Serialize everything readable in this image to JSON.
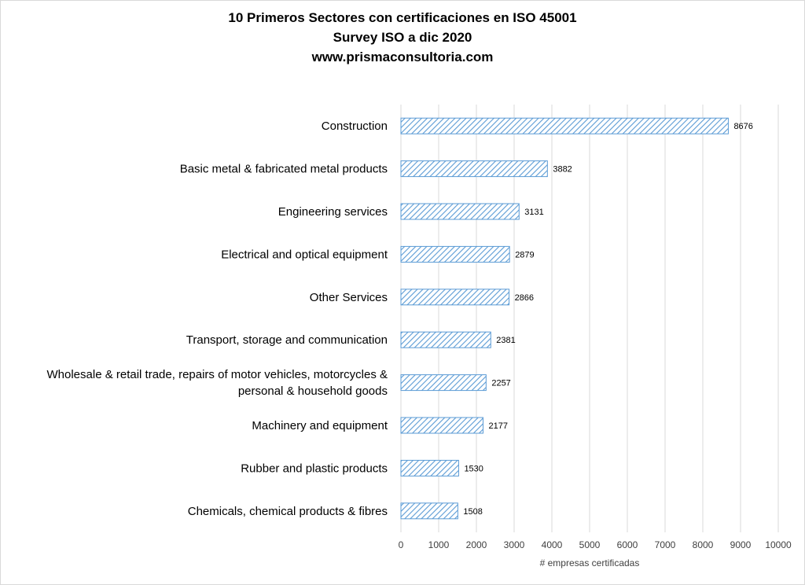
{
  "chart_data": {
    "type": "bar",
    "orientation": "horizontal",
    "title": [
      "10 Primeros Sectores con certificaciones en ISO 45001",
      "Survey ISO a dic 2020",
      "www.prismaconsultoria.com"
    ],
    "xlabel": "# empresas certificadas",
    "ylabel": "",
    "xlim": [
      0,
      10000
    ],
    "xticks": [
      0,
      1000,
      2000,
      3000,
      4000,
      5000,
      6000,
      7000,
      8000,
      9000,
      10000
    ],
    "grid": true,
    "legend": "none",
    "bar_color": "#5b9bd5",
    "bar_pattern": "diagonal-hatch",
    "categories": [
      [
        "Construction"
      ],
      [
        "Basic metal & fabricated metal products"
      ],
      [
        "Engineering services"
      ],
      [
        "Electrical and optical equipment"
      ],
      [
        "Other Services"
      ],
      [
        "Transport, storage and communication"
      ],
      [
        "Wholesale & retail trade, repairs of motor vehicles, motorcycles &",
        "personal & household goods"
      ],
      [
        "Machinery and equipment"
      ],
      [
        "Rubber and plastic products"
      ],
      [
        "Chemicals, chemical products & fibres"
      ]
    ],
    "values": [
      8676,
      3882,
      3131,
      2879,
      2866,
      2381,
      2257,
      2177,
      1530,
      1508
    ],
    "data_labels": [
      "8676",
      "3882",
      "3131",
      "2879",
      "2866",
      "2381",
      "2257",
      "2177",
      "1530",
      "1508"
    ]
  }
}
